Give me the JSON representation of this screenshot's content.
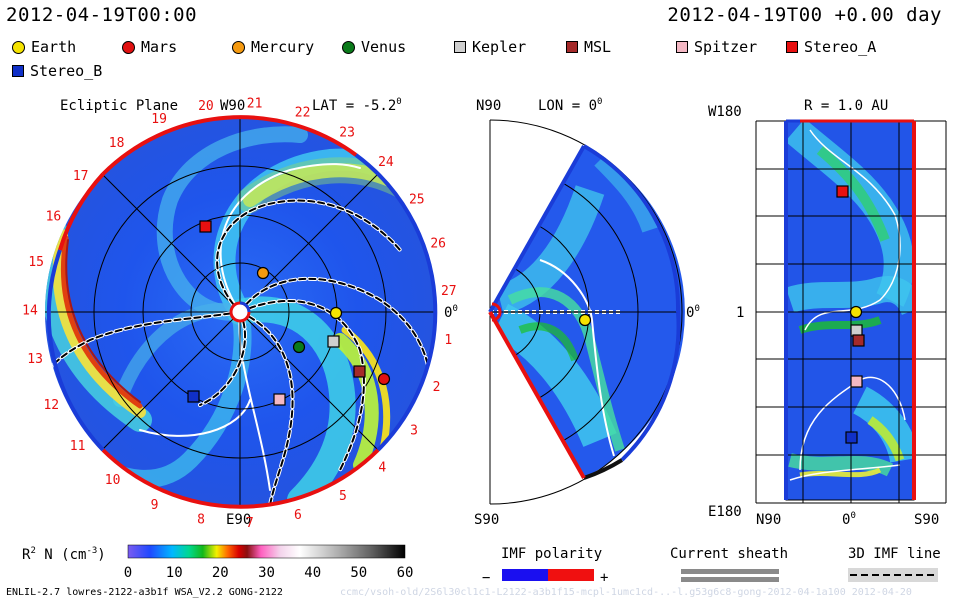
{
  "header": {
    "left_title": "2012-04-19T00:00",
    "right_title": "2012-04-19T00 +0.00 day"
  },
  "legend": [
    {
      "label": "Earth",
      "shape": "circle",
      "color": "#f5e300"
    },
    {
      "label": "Mars",
      "shape": "circle",
      "color": "#e01010"
    },
    {
      "label": "Mercury",
      "shape": "circle",
      "color": "#f59a10"
    },
    {
      "label": "Venus",
      "shape": "circle",
      "color": "#0a7a1a"
    },
    {
      "label": "Kepler",
      "shape": "square",
      "color": "#cfcfcf"
    },
    {
      "label": "MSL",
      "shape": "square",
      "color": "#a52a2a"
    },
    {
      "label": "Spitzer",
      "shape": "square",
      "color": "#f4b8c4"
    },
    {
      "label": "Stereo_A",
      "shape": "square",
      "color": "#e81010"
    },
    {
      "label": "Stereo_B",
      "shape": "square",
      "color": "#1030c8"
    }
  ],
  "ecliptic": {
    "title": "Ecliptic Plane",
    "top_label": "W90",
    "lat_label": "LAT = -5.2",
    "lat_sup": "0",
    "zero_label": "0",
    "zero_sup": "0",
    "bottom_label": "E90",
    "carrington": [
      "27",
      "1",
      "2",
      "3",
      "4",
      "5",
      "6",
      "7",
      "8",
      "9",
      "10",
      "11",
      "12",
      "13",
      "14",
      "15",
      "16",
      "17",
      "18",
      "19",
      "20",
      "21",
      "22",
      "23",
      "24",
      "25",
      "26"
    ]
  },
  "meridional": {
    "top_label": "N90",
    "lon_label": "LON = 0",
    "lon_sup": "0",
    "right_label": "0",
    "right_sup": "0",
    "bottom_label": "S90"
  },
  "radial": {
    "r_label": "R = 1.0 AU",
    "top_left": "W180",
    "mid_left": "1",
    "bottom_left": "E180",
    "x_labels": [
      "N90",
      "0",
      "S90"
    ],
    "x_sup": "0"
  },
  "colorbar": {
    "label": "R",
    "label_sup": "2",
    "label_rest": " N (cm",
    "label_exp": "-3",
    "label_close": ")",
    "ticks": [
      "0",
      "10",
      "20",
      "30",
      "40",
      "50",
      "60"
    ]
  },
  "imf_polarity": {
    "title": "IMF polarity",
    "minus": "−",
    "plus": "+"
  },
  "current_sheath": {
    "title": "Current sheath"
  },
  "imf_line": {
    "title": "3D IMF line"
  },
  "footer": {
    "left": "ENLIL-2.7 lowres-2122-a3b1f WSA_V2.2 GONG-2122",
    "right": "ccmc/vsoh-old/2S6l30cl1c1-L2122-a3b1f15-mcpl-1umc1cd-..-l.g53g6c8-gong-2012-04-1a100    2012-04-20"
  }
}
